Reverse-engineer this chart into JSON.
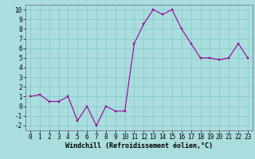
{
  "x": [
    0,
    1,
    2,
    3,
    4,
    5,
    6,
    7,
    8,
    9,
    10,
    11,
    12,
    13,
    14,
    15,
    16,
    17,
    18,
    19,
    20,
    21,
    22,
    23
  ],
  "y": [
    1.0,
    1.2,
    0.5,
    0.5,
    1.0,
    -1.5,
    0.0,
    -2.0,
    0.0,
    -0.5,
    -0.5,
    6.5,
    8.5,
    10.0,
    9.5,
    10.0,
    8.0,
    6.5,
    5.0,
    5.0,
    4.8,
    5.0,
    6.5,
    5.0
  ],
  "line_color": "#990099",
  "marker_color": "#990099",
  "bg_color": "#aadddd",
  "grid_color": "#88cccc",
  "xlabel": "Windchill (Refroidissement éolien,°C)",
  "xlabel_fontsize": 6.0,
  "tick_fontsize": 5.5,
  "xlim": [
    -0.5,
    23.5
  ],
  "ylim": [
    -2.5,
    10.5
  ],
  "yticks": [
    -2,
    -1,
    0,
    1,
    2,
    3,
    4,
    5,
    6,
    7,
    8,
    9,
    10
  ],
  "xticks": [
    0,
    1,
    2,
    3,
    4,
    5,
    6,
    7,
    8,
    9,
    10,
    11,
    12,
    13,
    14,
    15,
    16,
    17,
    18,
    19,
    20,
    21,
    22,
    23
  ]
}
